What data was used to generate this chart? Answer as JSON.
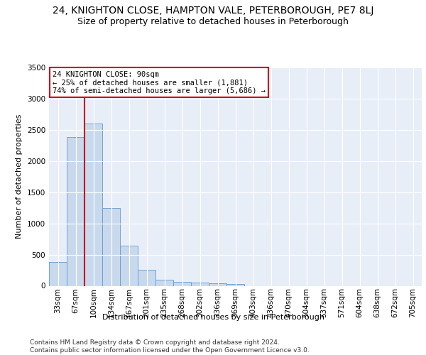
{
  "title": "24, KNIGHTON CLOSE, HAMPTON VALE, PETERBOROUGH, PE7 8LJ",
  "subtitle": "Size of property relative to detached houses in Peterborough",
  "xlabel": "Distribution of detached houses by size in Peterborough",
  "ylabel": "Number of detached properties",
  "categories": [
    "33sqm",
    "67sqm",
    "100sqm",
    "134sqm",
    "167sqm",
    "201sqm",
    "235sqm",
    "268sqm",
    "302sqm",
    "336sqm",
    "369sqm",
    "403sqm",
    "436sqm",
    "470sqm",
    "504sqm",
    "537sqm",
    "571sqm",
    "604sqm",
    "638sqm",
    "672sqm",
    "705sqm"
  ],
  "values": [
    380,
    2380,
    2600,
    1250,
    640,
    260,
    100,
    60,
    55,
    40,
    30,
    0,
    0,
    0,
    0,
    0,
    0,
    0,
    0,
    0,
    0
  ],
  "bar_color": "#c8d9ee",
  "bar_edge_color": "#6699cc",
  "vline_color": "#cc0000",
  "annotation_text": "24 KNIGHTON CLOSE: 90sqm\n← 25% of detached houses are smaller (1,881)\n74% of semi-detached houses are larger (5,686) →",
  "annotation_box_color": "#ffffff",
  "annotation_box_edge": "#cc0000",
  "ylim": [
    0,
    3500
  ],
  "yticks": [
    0,
    500,
    1000,
    1500,
    2000,
    2500,
    3000,
    3500
  ],
  "bg_color": "#e8eef8",
  "grid_color": "#ffffff",
  "footer": "Contains HM Land Registry data © Crown copyright and database right 2024.\nContains public sector information licensed under the Open Government Licence v3.0.",
  "title_fontsize": 10,
  "subtitle_fontsize": 9,
  "axis_label_fontsize": 8,
  "tick_fontsize": 7.5,
  "footer_fontsize": 6.5
}
